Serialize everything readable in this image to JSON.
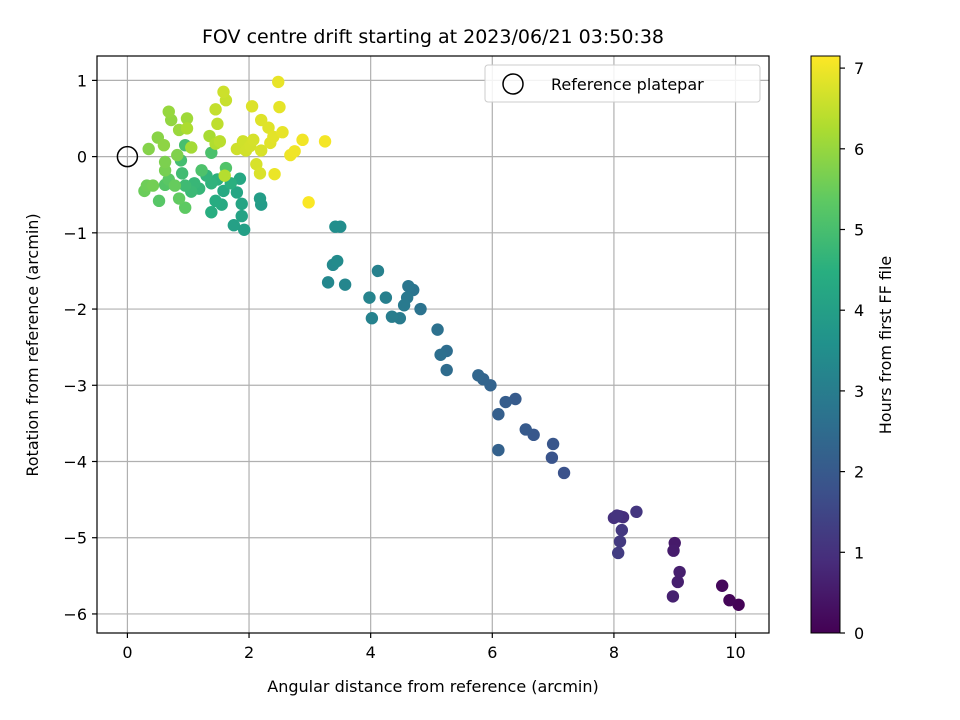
{
  "chart_data": {
    "type": "scatter",
    "title": "FOV centre drift starting at 2023/06/21 03:50:38",
    "xlabel": "Angular distance from reference (arcmin)",
    "ylabel": "Rotation from reference (arcmin)",
    "xlim": [
      -0.5,
      10.55
    ],
    "ylim": [
      -6.25,
      1.32
    ],
    "xticks": [
      0,
      2,
      4,
      6,
      8,
      10
    ],
    "yticks": [
      1,
      0,
      -1,
      -2,
      -3,
      -4,
      -5,
      -6
    ],
    "grid": true,
    "legend": {
      "placement": "top-right",
      "entries": [
        "Reference platepar"
      ]
    },
    "reference_point": {
      "x": 0,
      "y": 0
    },
    "colorbar": {
      "label": "Hours from first FF file",
      "colormap": "viridis",
      "range": [
        0,
        7.15
      ],
      "ticks": [
        0,
        1,
        2,
        3,
        4,
        5,
        6,
        7
      ]
    },
    "points": [
      [
        10.05,
        -5.88,
        0.05
      ],
      [
        9.9,
        -5.82,
        0.1
      ],
      [
        9.78,
        -5.63,
        0.15
      ],
      [
        9.05,
        -5.58,
        0.6
      ],
      [
        9.08,
        -5.45,
        0.6
      ],
      [
        8.97,
        -5.77,
        0.65
      ],
      [
        9.0,
        -5.07,
        0.5
      ],
      [
        8.98,
        -5.17,
        0.55
      ],
      [
        8.1,
        -4.72,
        0.9
      ],
      [
        8.15,
        -4.73,
        0.95
      ],
      [
        8.0,
        -4.74,
        1.0
      ],
      [
        8.05,
        -4.71,
        1.05
      ],
      [
        8.37,
        -4.66,
        1.1
      ],
      [
        8.13,
        -4.9,
        1.15
      ],
      [
        8.1,
        -5.05,
        1.2
      ],
      [
        8.07,
        -5.2,
        1.25
      ],
      [
        7.18,
        -4.15,
        1.8
      ],
      [
        6.98,
        -3.95,
        1.85
      ],
      [
        7.0,
        -3.77,
        1.9
      ],
      [
        6.68,
        -3.65,
        1.95
      ],
      [
        6.55,
        -3.58,
        2.0
      ],
      [
        6.38,
        -3.18,
        2.05
      ],
      [
        6.22,
        -3.22,
        2.1
      ],
      [
        6.1,
        -3.38,
        2.15
      ],
      [
        6.1,
        -3.85,
        2.2
      ],
      [
        5.97,
        -3.0,
        2.25
      ],
      [
        5.85,
        -2.92,
        2.3
      ],
      [
        5.77,
        -2.87,
        2.35
      ],
      [
        5.25,
        -2.8,
        2.5
      ],
      [
        5.25,
        -2.55,
        2.55
      ],
      [
        5.15,
        -2.6,
        2.6
      ],
      [
        5.1,
        -2.27,
        2.65
      ],
      [
        4.82,
        -2.0,
        2.7
      ],
      [
        4.7,
        -1.75,
        2.75
      ],
      [
        4.62,
        -1.7,
        2.8
      ],
      [
        4.6,
        -1.85,
        2.85
      ],
      [
        4.55,
        -1.95,
        2.9
      ],
      [
        4.48,
        -2.12,
        2.95
      ],
      [
        4.35,
        -2.1,
        3.0
      ],
      [
        4.25,
        -1.85,
        3.05
      ],
      [
        4.12,
        -1.5,
        3.1
      ],
      [
        4.02,
        -2.12,
        3.15
      ],
      [
        3.98,
        -1.85,
        3.2
      ],
      [
        3.58,
        -1.68,
        3.25
      ],
      [
        3.3,
        -1.65,
        3.3
      ],
      [
        3.38,
        -1.42,
        3.35
      ],
      [
        3.45,
        -1.37,
        3.4
      ],
      [
        3.5,
        -0.92,
        3.45
      ],
      [
        3.42,
        -0.92,
        3.5
      ],
      [
        2.2,
        -0.63,
        3.9
      ],
      [
        2.18,
        -0.55,
        3.95
      ],
      [
        1.92,
        -0.96,
        4.0
      ],
      [
        1.75,
        -0.9,
        4.05
      ],
      [
        1.88,
        -0.78,
        4.1
      ],
      [
        1.88,
        -0.62,
        4.15
      ],
      [
        1.8,
        -0.47,
        4.2
      ],
      [
        1.85,
        -0.29,
        4.25
      ],
      [
        1.58,
        -0.45,
        4.3
      ],
      [
        1.55,
        -0.63,
        4.35
      ],
      [
        1.45,
        -0.58,
        4.4
      ],
      [
        1.38,
        -0.73,
        4.45
      ],
      [
        1.7,
        -0.35,
        4.5
      ],
      [
        1.48,
        -0.3,
        4.55
      ],
      [
        1.38,
        -0.35,
        4.6
      ],
      [
        1.3,
        -0.25,
        4.65
      ],
      [
        1.18,
        -0.42,
        4.7
      ],
      [
        1.1,
        -0.35,
        4.75
      ],
      [
        1.05,
        -0.46,
        4.8
      ],
      [
        0.95,
        -0.38,
        4.85
      ],
      [
        0.9,
        -0.22,
        4.9
      ],
      [
        0.88,
        -0.05,
        4.95
      ],
      [
        0.95,
        0.15,
        5.0
      ],
      [
        1.38,
        0.05,
        5.05
      ],
      [
        1.22,
        -0.18,
        5.1
      ],
      [
        1.62,
        -0.15,
        5.15
      ],
      [
        0.62,
        -0.37,
        5.2
      ],
      [
        0.52,
        -0.58,
        5.25
      ],
      [
        0.68,
        -0.3,
        5.3
      ],
      [
        0.95,
        -0.67,
        5.35
      ],
      [
        0.85,
        -0.55,
        5.4
      ],
      [
        0.78,
        -0.38,
        5.45
      ],
      [
        0.28,
        -0.45,
        5.5
      ],
      [
        0.32,
        -0.38,
        5.55
      ],
      [
        0.42,
        -0.38,
        5.6
      ],
      [
        0.62,
        -0.18,
        5.65
      ],
      [
        0.62,
        -0.07,
        5.7
      ],
      [
        0.82,
        0.02,
        5.75
      ],
      [
        0.35,
        0.1,
        5.8
      ],
      [
        0.5,
        0.25,
        5.85
      ],
      [
        0.6,
        0.15,
        5.9
      ],
      [
        0.72,
        0.48,
        5.95
      ],
      [
        0.68,
        0.59,
        6.0
      ],
      [
        0.85,
        0.35,
        6.05
      ],
      [
        0.98,
        0.5,
        6.1
      ],
      [
        1.05,
        0.12,
        6.15
      ],
      [
        1.35,
        0.27,
        6.2
      ],
      [
        0.98,
        0.37,
        6.25
      ],
      [
        1.45,
        0.17,
        6.3
      ],
      [
        1.6,
        -0.25,
        6.35
      ],
      [
        1.52,
        0.2,
        6.4
      ],
      [
        1.48,
        0.43,
        6.45
      ],
      [
        1.45,
        0.62,
        6.5
      ],
      [
        1.62,
        0.74,
        6.55
      ],
      [
        1.58,
        0.85,
        6.6
      ],
      [
        1.8,
        0.1,
        6.62
      ],
      [
        1.9,
        0.2,
        6.64
      ],
      [
        1.95,
        0.08,
        6.66
      ],
      [
        2.02,
        0.14,
        6.68
      ],
      [
        2.07,
        0.22,
        6.7
      ],
      [
        2.12,
        -0.1,
        6.72
      ],
      [
        2.2,
        0.08,
        6.74
      ],
      [
        2.18,
        -0.22,
        6.76
      ],
      [
        2.05,
        0.66,
        6.78
      ],
      [
        2.2,
        0.48,
        6.8
      ],
      [
        2.32,
        0.38,
        6.82
      ],
      [
        2.35,
        0.18,
        6.84
      ],
      [
        2.4,
        0.26,
        6.86
      ],
      [
        2.5,
        0.65,
        6.88
      ],
      [
        2.55,
        0.32,
        6.9
      ],
      [
        2.48,
        0.98,
        6.92
      ],
      [
        2.42,
        -0.23,
        6.95
      ],
      [
        2.68,
        0.02,
        6.98
      ],
      [
        2.75,
        0.07,
        7.0
      ],
      [
        2.88,
        0.22,
        7.02
      ],
      [
        3.25,
        0.2,
        7.05
      ],
      [
        2.98,
        -0.6,
        7.12
      ]
    ]
  }
}
